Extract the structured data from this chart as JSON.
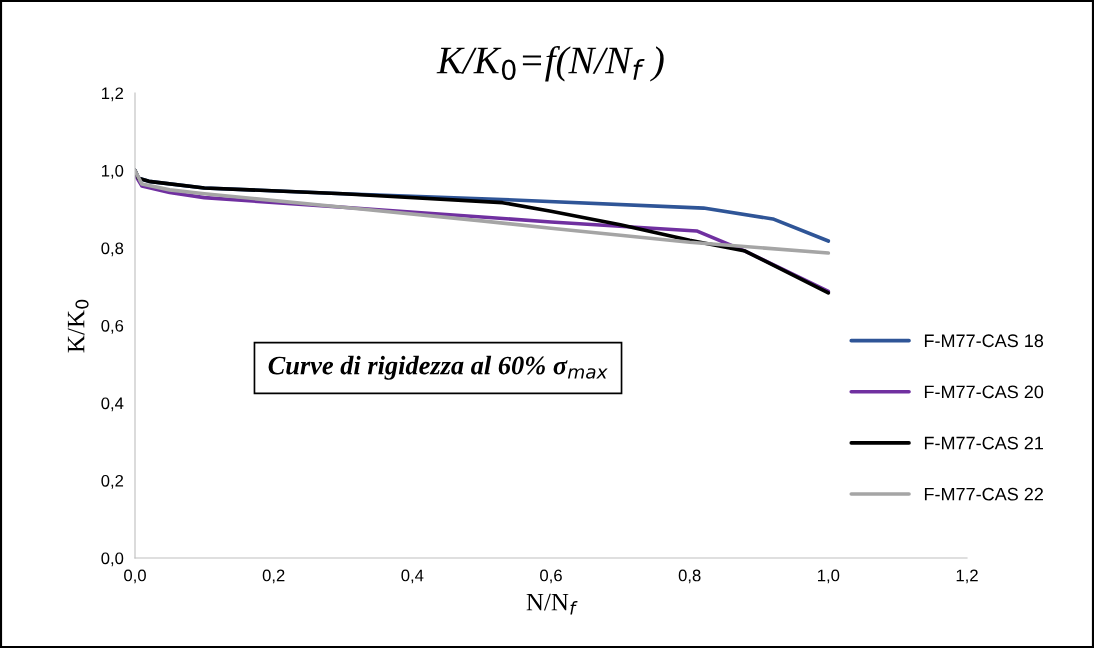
{
  "chart_data": {
    "type": "line",
    "title": "K/K$_{0}$=f(N/N$_{f}$ )",
    "xlabel": "N/N$_{f}$",
    "ylabel": "K/K$_{0}$",
    "annotations": [
      "Curve di rigidezza al 60% σ$_{max}$"
    ],
    "xlim": [
      0,
      1.2
    ],
    "ylim": [
      0,
      1.2
    ],
    "xticks": [
      {
        "value": 0,
        "label": "0,0"
      },
      {
        "value": 0.2,
        "label": "0,2"
      },
      {
        "value": 0.4,
        "label": "0,4"
      },
      {
        "value": 0.6,
        "label": "0,6"
      },
      {
        "value": 0.8,
        "label": "0,8"
      },
      {
        "value": 1.0,
        "label": "1,0"
      },
      {
        "value": 1.2,
        "label": "1,2"
      }
    ],
    "yticks": [
      {
        "value": 0,
        "label": "0,0"
      },
      {
        "value": 0.2,
        "label": "0,2"
      },
      {
        "value": 0.4,
        "label": "0,4"
      },
      {
        "value": 0.6,
        "label": "0,6"
      },
      {
        "value": 0.8,
        "label": "0,8"
      },
      {
        "value": 1.0,
        "label": "1,0"
      },
      {
        "value": 1.2,
        "label": "1,2"
      }
    ],
    "grid": false,
    "legend": "right",
    "marker": "none",
    "line_style": "solid",
    "series": [
      {
        "name": "F-M77-CAS 18",
        "color": "#2f5597",
        "x": [
          0,
          0.005,
          0.02,
          0.1,
          0.3,
          0.53,
          0.82,
          0.92,
          1.0
        ],
        "values": [
          1.0,
          0.98,
          0.972,
          0.955,
          0.94,
          0.925,
          0.903,
          0.875,
          0.818
        ]
      },
      {
        "name": "F-M77-CAS 20",
        "color": "#7030a0",
        "x": [
          0,
          0.01,
          0.05,
          0.1,
          0.3,
          0.5,
          0.6,
          0.81,
          0.88,
          1.0
        ],
        "values": [
          0.99,
          0.96,
          0.943,
          0.93,
          0.905,
          0.88,
          0.867,
          0.844,
          0.792,
          0.688
        ]
      },
      {
        "name": "F-M77-CAS 21",
        "color": "#000000",
        "x": [
          0,
          0.005,
          0.02,
          0.1,
          0.3,
          0.53,
          0.6,
          0.7,
          0.8,
          0.88,
          1.0
        ],
        "values": [
          1.0,
          0.98,
          0.972,
          0.955,
          0.94,
          0.917,
          0.895,
          0.86,
          0.82,
          0.792,
          0.684
        ]
      },
      {
        "name": "F-M77-CAS 22",
        "color": "#a5a5a5",
        "x": [
          0,
          0.01,
          0.05,
          0.1,
          0.3,
          0.5,
          0.6,
          0.8,
          1.0
        ],
        "values": [
          1.0,
          0.965,
          0.95,
          0.94,
          0.905,
          0.87,
          0.851,
          0.815,
          0.787
        ]
      }
    ]
  }
}
